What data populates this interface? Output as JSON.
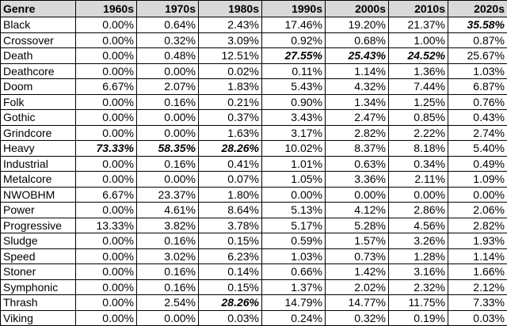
{
  "table": {
    "header": [
      "Genre",
      "1960s",
      "1970s",
      "1980s",
      "1990s",
      "2000s",
      "2010s",
      "2020s"
    ],
    "rows": [
      [
        "Black",
        "0.00%",
        "0.64%",
        "2.43%",
        "17.46%",
        "19.20%",
        "21.37%",
        {
          "text": "35.58%",
          "emphasis": true
        }
      ],
      [
        "Crossover",
        "0.00%",
        "0.32%",
        "3.09%",
        "0.92%",
        "0.68%",
        "1.00%",
        "0.87%"
      ],
      [
        "Death",
        "0.00%",
        "0.48%",
        "12.51%",
        {
          "text": "27.55%",
          "emphasis": true
        },
        {
          "text": "25.43%",
          "emphasis": true
        },
        {
          "text": "24.52%",
          "emphasis": true
        },
        "25.67%"
      ],
      [
        "Deathcore",
        "0.00%",
        "0.00%",
        "0.02%",
        "0.11%",
        "1.14%",
        "1.36%",
        "1.03%"
      ],
      [
        "Doom",
        "6.67%",
        "2.07%",
        "1.83%",
        "5.43%",
        "4.32%",
        "7.44%",
        "6.87%"
      ],
      [
        "Folk",
        "0.00%",
        "0.16%",
        "0.21%",
        "0.90%",
        "1.34%",
        "1.25%",
        "0.76%"
      ],
      [
        "Gothic",
        "0.00%",
        "0.00%",
        "0.37%",
        "3.43%",
        "2.47%",
        "0.85%",
        "0.43%"
      ],
      [
        "Grindcore",
        "0.00%",
        "0.00%",
        "1.63%",
        "3.17%",
        "2.82%",
        "2.22%",
        "2.74%"
      ],
      [
        "Heavy",
        {
          "text": "73.33%",
          "emphasis": true
        },
        {
          "text": "58.35%",
          "emphasis": true
        },
        {
          "text": "28.26%",
          "emphasis": true
        },
        "10.02%",
        "8.37%",
        "8.18%",
        "5.40%"
      ],
      [
        "Industrial",
        "0.00%",
        "0.16%",
        "0.41%",
        "1.01%",
        "0.63%",
        "0.34%",
        "0.49%"
      ],
      [
        "Metalcore",
        "0.00%",
        "0.00%",
        "0.07%",
        "1.05%",
        "3.36%",
        "2.11%",
        "1.09%"
      ],
      [
        "NWOBHM",
        "6.67%",
        "23.37%",
        "1.80%",
        "0.00%",
        "0.00%",
        "0.00%",
        "0.00%"
      ],
      [
        "Power",
        "0.00%",
        "4.61%",
        "8.64%",
        "5.13%",
        "4.12%",
        "2.86%",
        "2.06%"
      ],
      [
        "Progressive",
        "13.33%",
        "3.82%",
        "3.78%",
        "5.17%",
        "5.28%",
        "4.56%",
        "2.82%"
      ],
      [
        "Sludge",
        "0.00%",
        "0.16%",
        "0.15%",
        "0.59%",
        "1.57%",
        "3.26%",
        "1.93%"
      ],
      [
        "Speed",
        "0.00%",
        "3.02%",
        "6.23%",
        "1.03%",
        "0.73%",
        "1.28%",
        "1.14%"
      ],
      [
        "Stoner",
        "0.00%",
        "0.16%",
        "0.14%",
        "0.66%",
        "1.42%",
        "3.16%",
        "1.66%"
      ],
      [
        "Symphonic",
        "0.00%",
        "0.16%",
        "0.15%",
        "1.37%",
        "2.02%",
        "2.32%",
        "2.12%"
      ],
      [
        "Thrash",
        "0.00%",
        "2.54%",
        {
          "text": "28.26%",
          "emphasis": true
        },
        "14.79%",
        "14.77%",
        "11.75%",
        "7.33%"
      ],
      [
        "Viking",
        "0.00%",
        "0.00%",
        "0.03%",
        "0.24%",
        "0.32%",
        "0.19%",
        "0.03%"
      ]
    ]
  }
}
